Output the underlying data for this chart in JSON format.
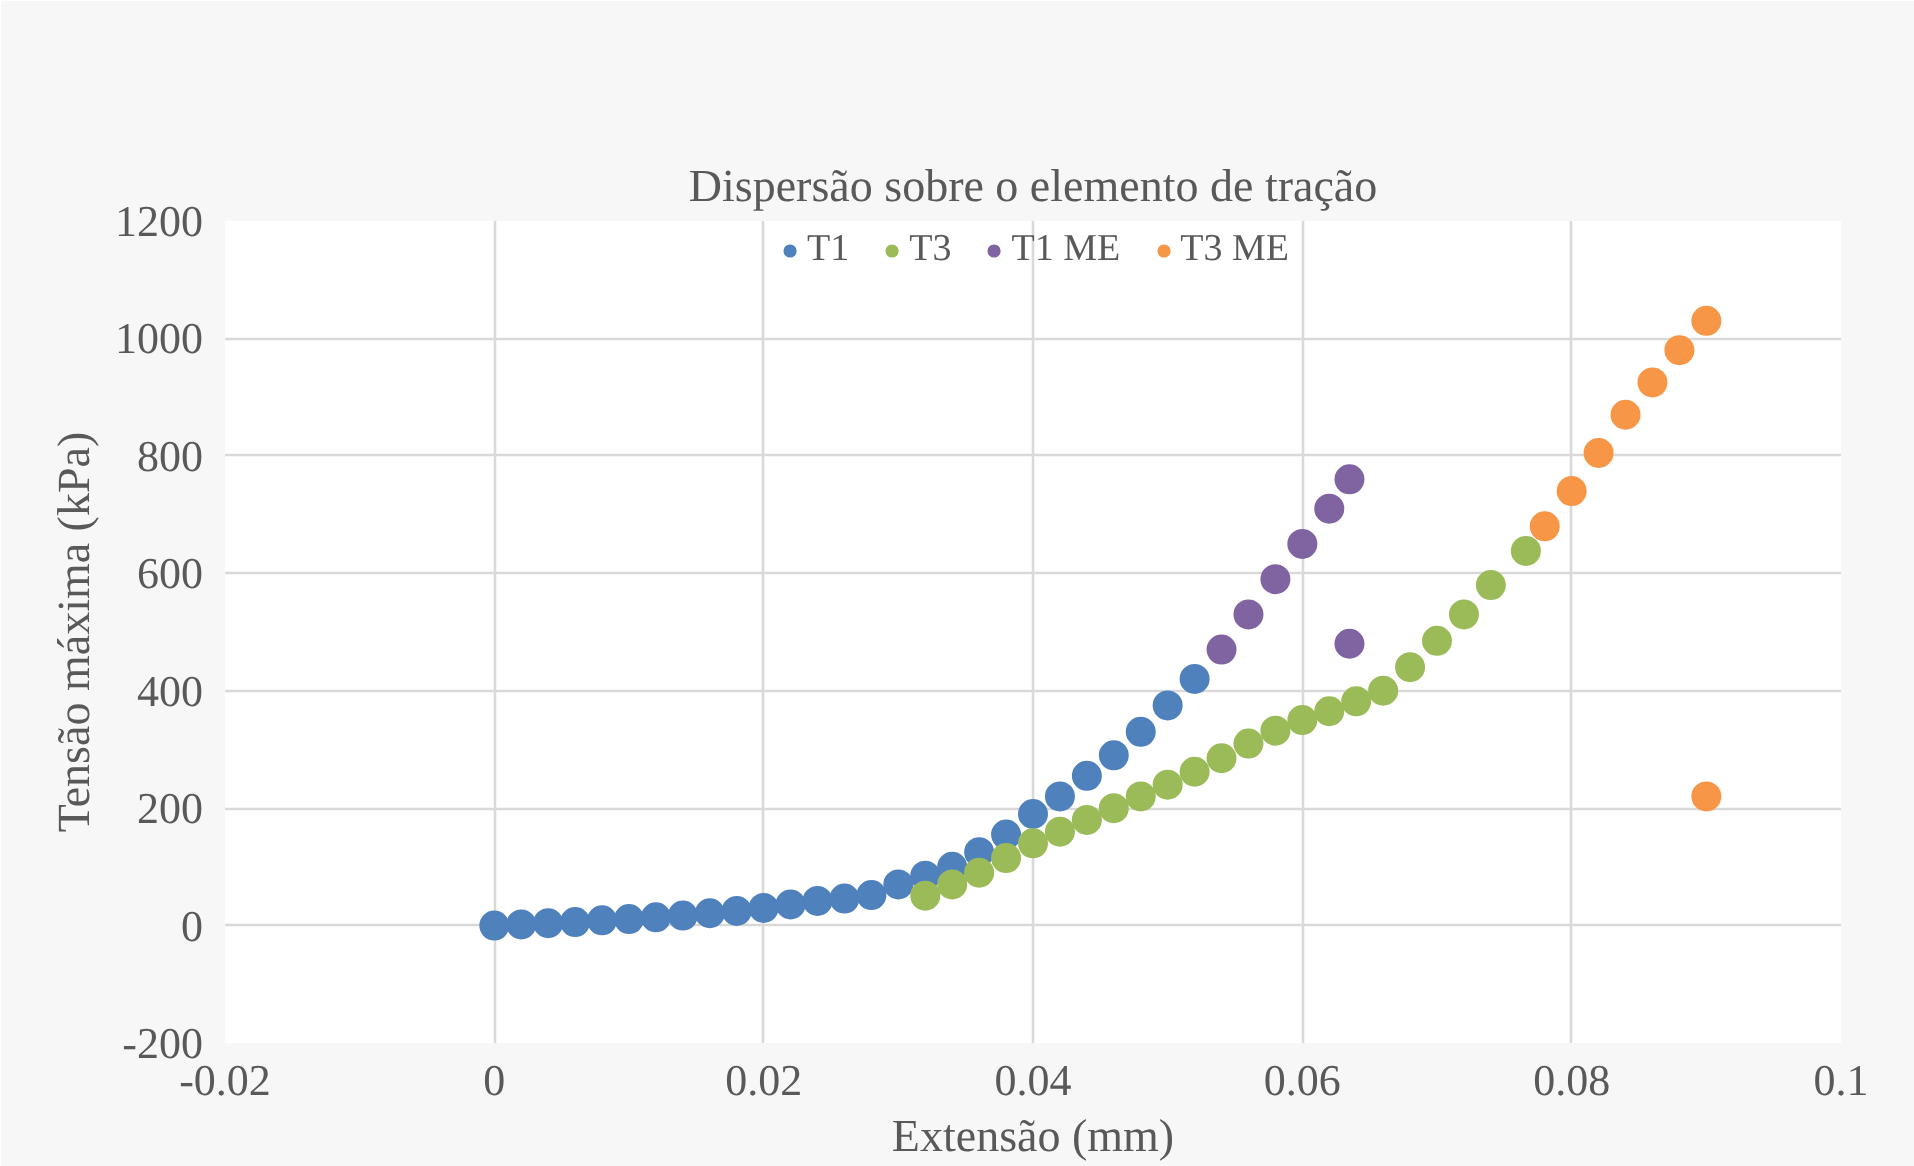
{
  "chart_data": {
    "type": "scatter",
    "title": "Dispersão sobre o elemento de tração",
    "xlabel": "Extensão (mm)",
    "ylabel": "Tensão máxima (kPa)",
    "xlim": [
      -0.02,
      0.1
    ],
    "xticks": [
      -0.02,
      0,
      0.02,
      0.04,
      0.06,
      0.08,
      0.1
    ],
    "ylim": [
      -200,
      1200
    ],
    "yticks": [
      -200,
      0,
      200,
      400,
      600,
      800,
      1000,
      1200
    ],
    "grid": true,
    "legend": "top",
    "marker": "circle",
    "series": [
      {
        "name": "T1",
        "color": "#4f81bd",
        "x": [
          0,
          0.002,
          0.004,
          0.006,
          0.008,
          0.01,
          0.012,
          0.014,
          0.016,
          0.018,
          0.02,
          0.022,
          0.024,
          0.026,
          0.028,
          0.03,
          0.032,
          0.034,
          0.036,
          0.038,
          0.04,
          0.042,
          0.044,
          0.046,
          0.048,
          0.05,
          0.052
        ],
        "values": [
          0,
          2,
          4,
          6,
          9,
          11,
          14,
          17,
          21,
          25,
          30,
          36,
          42,
          46,
          52,
          70,
          85,
          100,
          125,
          155,
          190,
          220,
          255,
          290,
          330,
          375,
          420
        ]
      },
      {
        "name": "T3",
        "color": "#9bbb59",
        "x": [
          0.032,
          0.034,
          0.036,
          0.038,
          0.04,
          0.042,
          0.044,
          0.046,
          0.048,
          0.05,
          0.052,
          0.054,
          0.056,
          0.058,
          0.06,
          0.062,
          0.064,
          0.066,
          0.068,
          0.07,
          0.072,
          0.074,
          0.0766
        ],
        "values": [
          51,
          70,
          90,
          115,
          140,
          160,
          180,
          200,
          220,
          240,
          262,
          285,
          310,
          332,
          350,
          365,
          382,
          400,
          440,
          485,
          530,
          580,
          638
        ]
      },
      {
        "name": "T1 ME",
        "color": "#8064a2",
        "x": [
          0.054,
          0.056,
          0.058,
          0.06,
          0.062,
          0.0635,
          0.0635
        ],
        "values": [
          470,
          530,
          590,
          650,
          710,
          760,
          480
        ]
      },
      {
        "name": "T3 ME",
        "color": "#f79646",
        "x": [
          0.078,
          0.08,
          0.082,
          0.084,
          0.086,
          0.088,
          0.09,
          0.09
        ],
        "values": [
          680,
          740,
          805,
          870,
          925,
          980,
          1030,
          220
        ]
      }
    ]
  }
}
